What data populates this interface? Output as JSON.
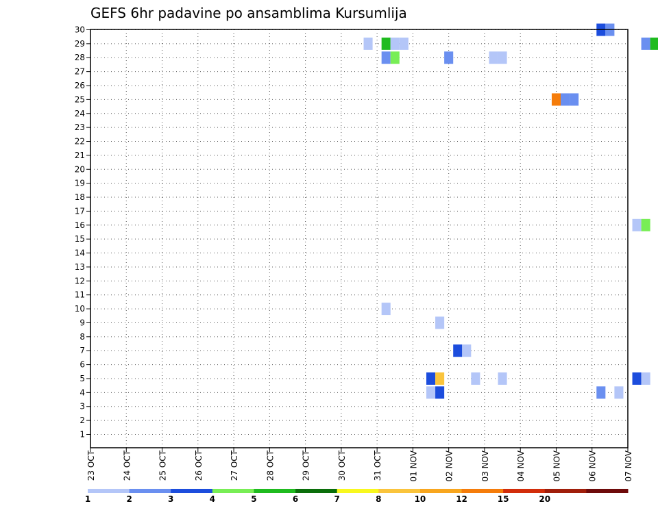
{
  "chart_data": {
    "type": "heatmap",
    "title": "GEFS 6hr padavine po ansamblima Kursumlija",
    "xlabel": "",
    "ylabel": "",
    "x_tick_labels": [
      "23 OCT",
      "24 OCT",
      "25 OCT",
      "26 OCT",
      "27 OCT",
      "28 OCT",
      "29 OCT",
      "30 OCT",
      "31 OCT",
      "01 NOV",
      "02 NOV",
      "03 NOV",
      "04 NOV",
      "05 NOV",
      "06 NOV",
      "07 NOV"
    ],
    "y_range": [
      1,
      30
    ],
    "x_range_days": [
      0,
      15
    ],
    "grid": true,
    "colorbar": {
      "labels": [
        "1",
        "2",
        "3",
        "4",
        "5",
        "6",
        "7",
        "8",
        "10",
        "12",
        "15",
        "20"
      ],
      "colors": [
        "#b4c6f8",
        "#6a8ff0",
        "#1c4ddd",
        "#78ee55",
        "#1fbb1f",
        "#0a6e0a",
        "#f8f81e",
        "#fac43c",
        "#f8a61e",
        "#f57c0a",
        "#d22d0a",
        "#a01e0a",
        "#6e0a0a"
      ]
    },
    "cells": [
      {
        "x": "30 OCT 18",
        "member": 29,
        "color": "#b4c6f8"
      },
      {
        "x": "31 OCT 06",
        "member": 29,
        "color": "#1fbb1f"
      },
      {
        "x": "31 OCT 12",
        "member": 29,
        "color": "#b4c6f8"
      },
      {
        "x": "31 OCT 18",
        "member": 29,
        "color": "#b4c6f8"
      },
      {
        "x": "31 OCT 06",
        "member": 28,
        "color": "#6a8ff0"
      },
      {
        "x": "31 OCT 12",
        "member": 28,
        "color": "#78ee55"
      },
      {
        "x": "02 NOV 00",
        "member": 28,
        "color": "#6a8ff0"
      },
      {
        "x": "03 NOV 06",
        "member": 28,
        "color": "#b4c6f8"
      },
      {
        "x": "03 NOV 12",
        "member": 28,
        "color": "#b4c6f8"
      },
      {
        "x": "05 NOV 00",
        "member": 25,
        "color": "#f57c0a"
      },
      {
        "x": "05 NOV 06",
        "member": 25,
        "color": "#6a8ff0"
      },
      {
        "x": "05 NOV 12",
        "member": 25,
        "color": "#6a8ff0"
      },
      {
        "x": "06 NOV 06",
        "member": 30,
        "color": "#1c4ddd"
      },
      {
        "x": "06 NOV 12",
        "member": 30,
        "color": "#6a8ff0"
      },
      {
        "x": "07 NOV 12",
        "member": 29,
        "color": "#6a8ff0"
      },
      {
        "x": "07 NOV 18",
        "member": 29,
        "color": "#1fbb1f"
      },
      {
        "x": "07 NOV 06",
        "member": 16,
        "color": "#b4c6f8"
      },
      {
        "x": "07 NOV 12",
        "member": 16,
        "color": "#78ee55"
      },
      {
        "x": "31 OCT 06",
        "member": 10,
        "color": "#b4c6f8"
      },
      {
        "x": "01 NOV 18",
        "member": 9,
        "color": "#b4c6f8"
      },
      {
        "x": "02 NOV 06",
        "member": 7,
        "color": "#1c4ddd"
      },
      {
        "x": "02 NOV 12",
        "member": 7,
        "color": "#b4c6f8"
      },
      {
        "x": "01 NOV 12",
        "member": 5,
        "color": "#1c4ddd"
      },
      {
        "x": "01 NOV 18",
        "member": 5,
        "color": "#fac43c"
      },
      {
        "x": "02 NOV 18",
        "member": 5,
        "color": "#b4c6f8"
      },
      {
        "x": "03 NOV 12",
        "member": 5,
        "color": "#b4c6f8"
      },
      {
        "x": "07 NOV 06",
        "member": 5,
        "color": "#1c4ddd"
      },
      {
        "x": "07 NOV 12",
        "member": 5,
        "color": "#b4c6f8"
      },
      {
        "x": "01 NOV 12",
        "member": 4,
        "color": "#b4c6f8"
      },
      {
        "x": "01 NOV 18",
        "member": 4,
        "color": "#1c4ddd"
      },
      {
        "x": "06 NOV 06",
        "member": 4,
        "color": "#6a8ff0"
      },
      {
        "x": "06 NOV 18",
        "member": 4,
        "color": "#b4c6f8"
      }
    ]
  }
}
